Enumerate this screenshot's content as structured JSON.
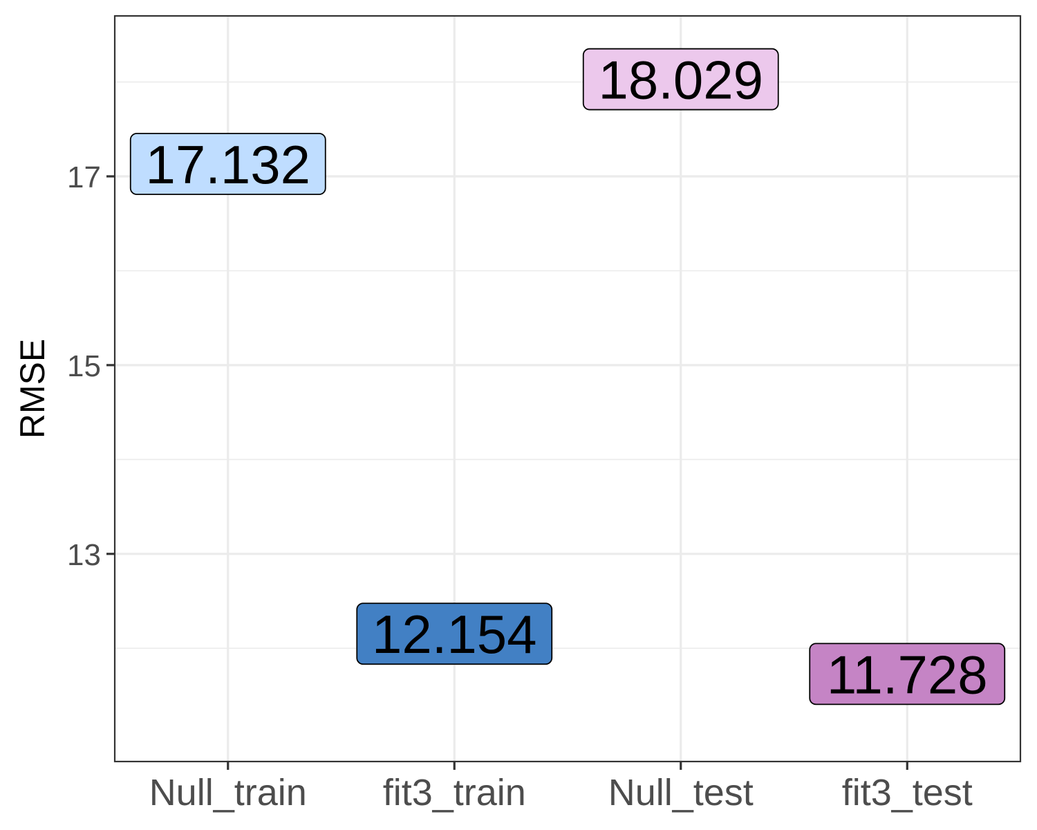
{
  "chart_data": {
    "type": "scatter",
    "title": "",
    "xlabel": "",
    "ylabel": "RMSE",
    "ylim": [
      10.8,
      18.7
    ],
    "yticks": [
      13,
      15,
      17
    ],
    "grid": true,
    "legend": "none",
    "categories": [
      "Null_train",
      "fit3_train",
      "Null_test",
      "fit3_test"
    ],
    "points": [
      {
        "category": "Null_train",
        "value": 17.132,
        "label": "17.132",
        "color": "#bfddff"
      },
      {
        "category": "fit3_train",
        "value": 12.154,
        "label": "12.154",
        "color": "#4280c4"
      },
      {
        "category": "Null_test",
        "value": 18.029,
        "label": "18.029",
        "color": "#ecc8ec"
      },
      {
        "category": "fit3_test",
        "value": 11.728,
        "label": "11.728",
        "color": "#c584c5"
      }
    ]
  }
}
